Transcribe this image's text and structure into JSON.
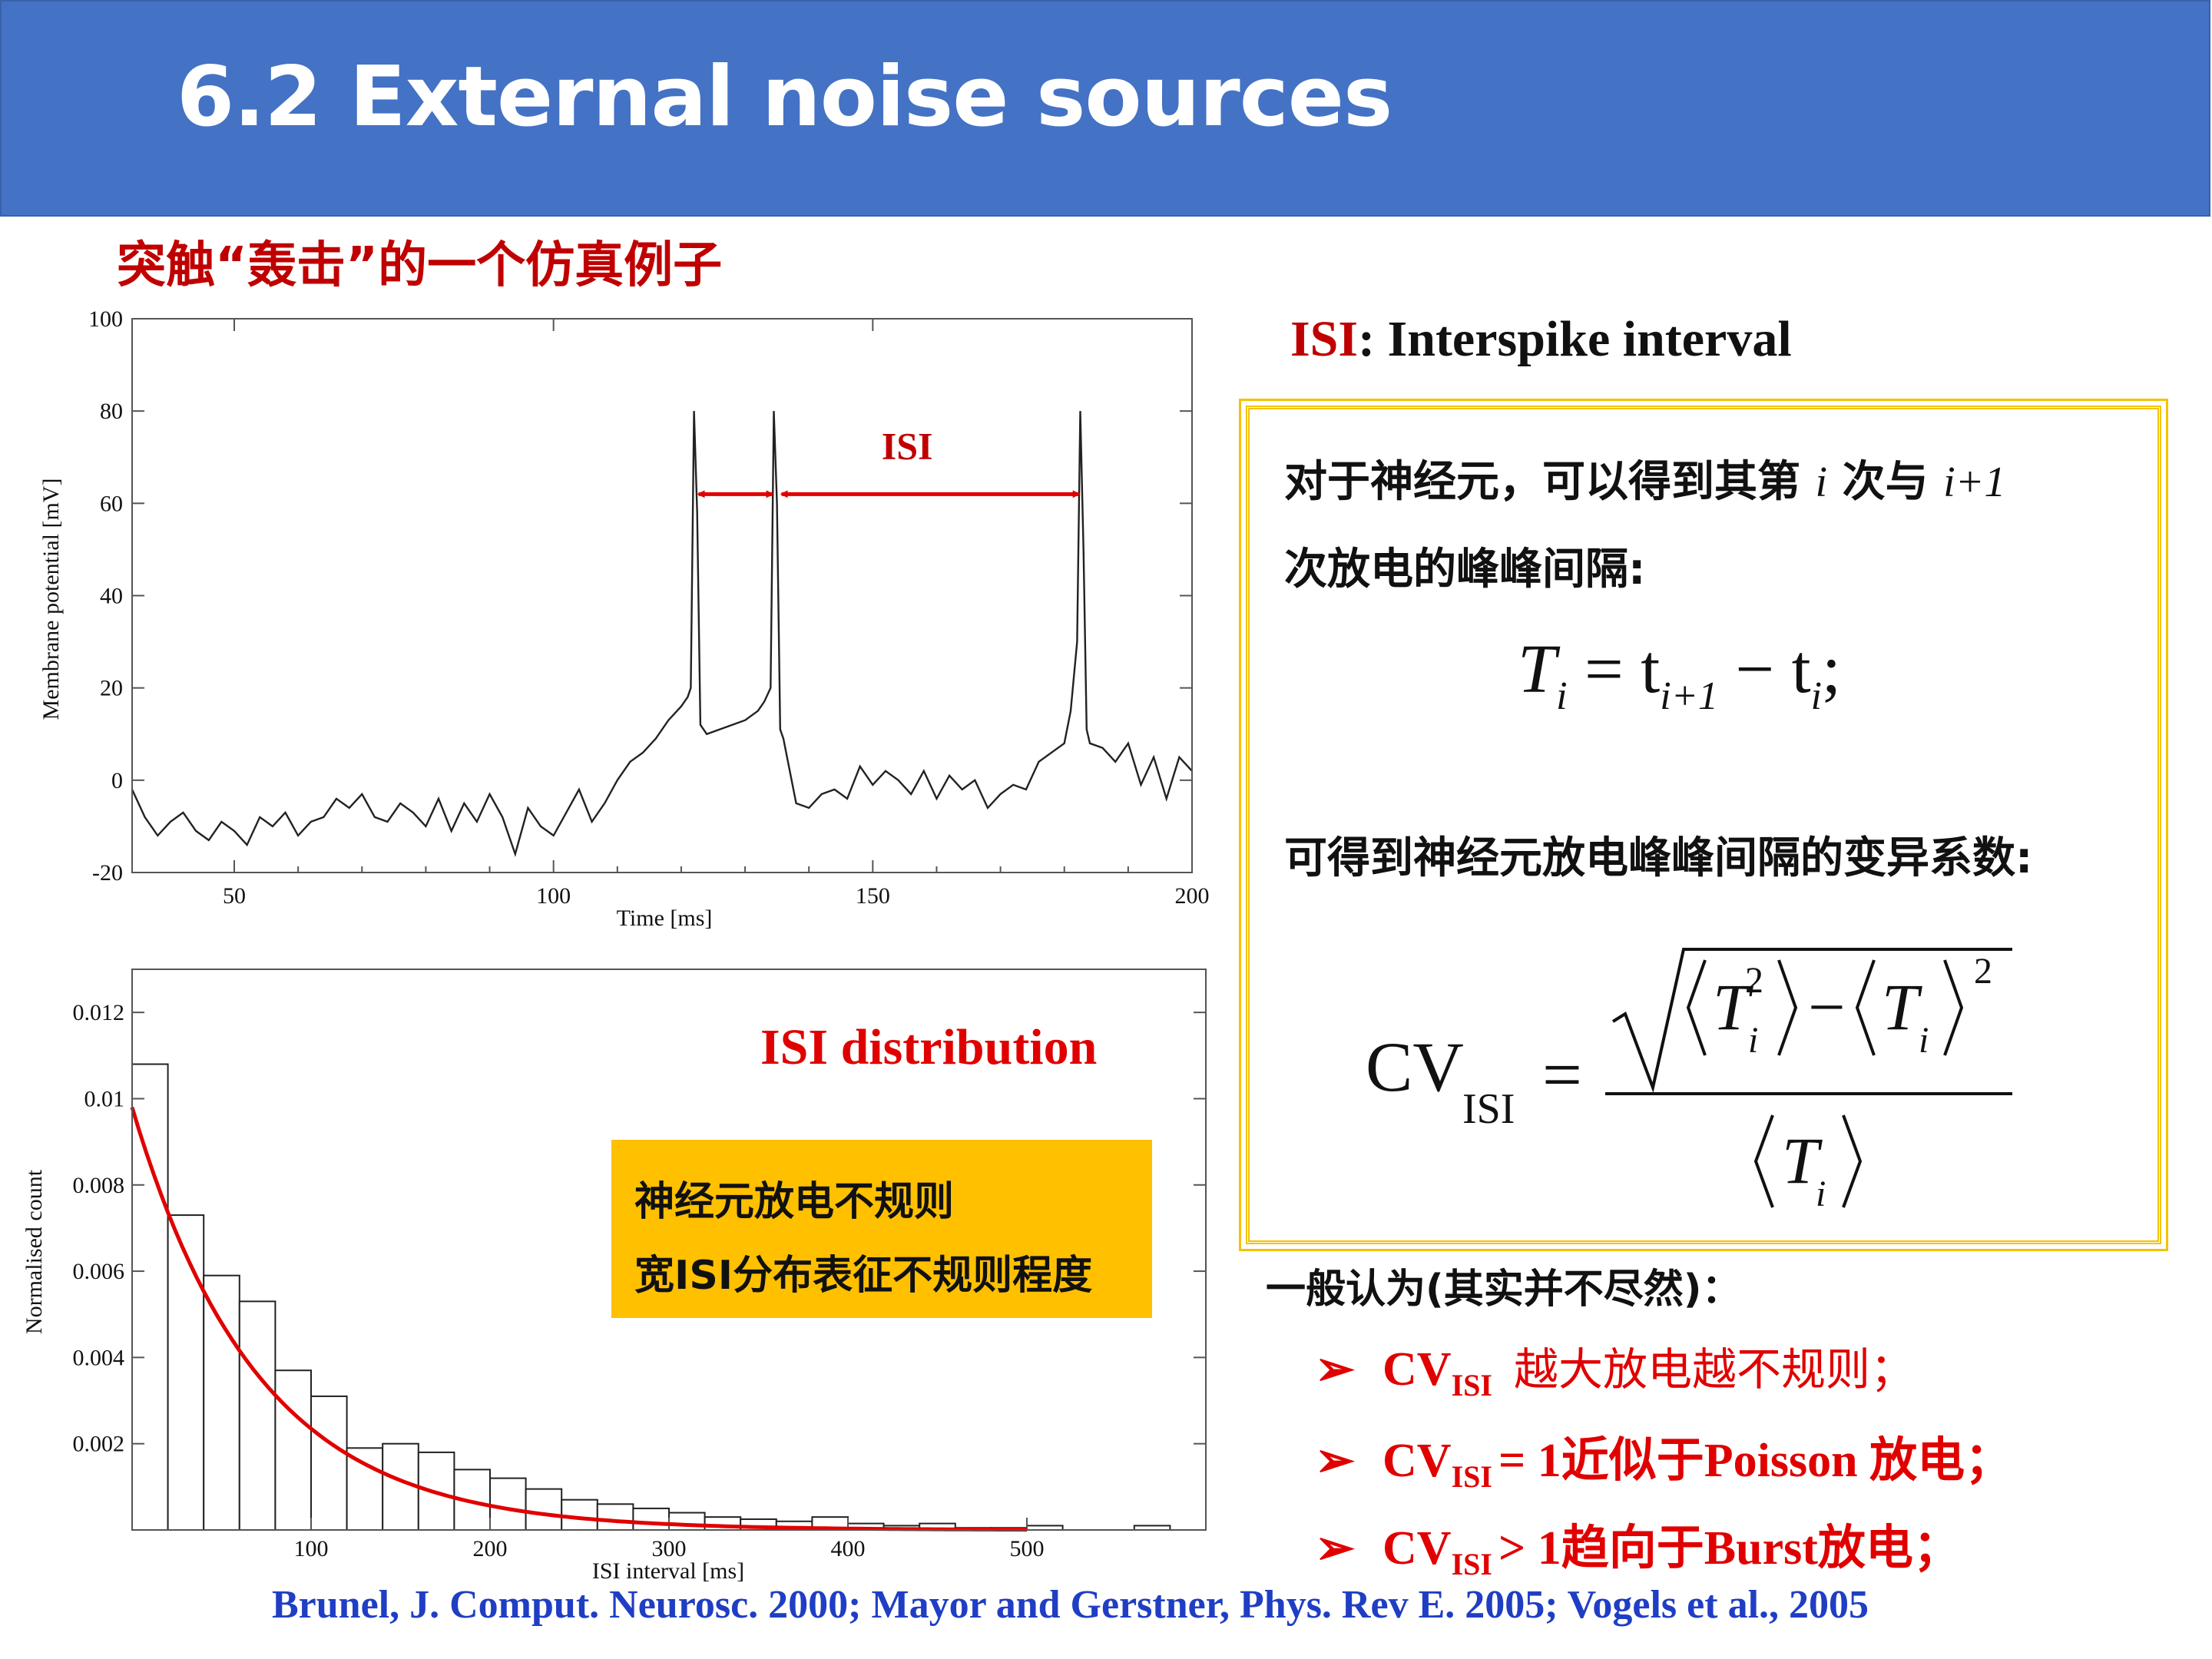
{
  "slide": {
    "title": "6.2 External noise sources",
    "subtitle": "突触“轰击”的一个仿真例子"
  },
  "isi_definition": {
    "abbr": "ISI",
    "rest": ": Interspike interval"
  },
  "box": {
    "line1_a": "对于神经元，可以得到其第",
    "line1_i": "i",
    "line1_b": "次与",
    "line1_c": "i+1",
    "line2": "次放电的峰峰间隔:",
    "formula1_T": "T",
    "formula1_i": "i",
    "formula1_eq": " = t",
    "formula1_i1": "i+1",
    "formula1_minus": " − t",
    "formula1_i2": "i",
    "formula1_end": ";",
    "line3": "可得到神经元放电峰峰间隔的变异系数:",
    "cv_label": "CV",
    "cv_sub": "ISI",
    "cv_eq": "=",
    "cv_T": "T",
    "cv_i": "i",
    "cv_sq": "2",
    "cv_minus": "−"
  },
  "general": "一般认为(其实并不尽然)：",
  "bullets": [
    {
      "arrow": "➢",
      "cv": "CV",
      "sub": "ISI",
      "text": "越大放电越不规则；"
    },
    {
      "arrow": "➢",
      "cv": "CV",
      "sub": "ISI",
      "text": "= 1近似于Poisson 放电；"
    },
    {
      "arrow": "➢",
      "cv": "CV",
      "sub": "ISI",
      "text": "> 1趋向于Burst放电；"
    }
  ],
  "note": {
    "line1": "神经元放电不规则",
    "line2": "宽ISI分布表征不规则程度"
  },
  "references": "Brunel, J. Comput. Neurosc. 2000;  Mayor and Gerstner, Phys. Rev E. 2005;  Vogels et al., 2005",
  "chart_data": [
    {
      "type": "line",
      "xlabel": "Time [ms]",
      "ylabel": "Membrane potential [mV]",
      "xlim": [
        34,
        200
      ],
      "ylim": [
        -20,
        100
      ],
      "xticks": [
        50,
        100,
        150,
        200
      ],
      "yticks": [
        -20,
        0,
        20,
        40,
        60,
        80,
        100
      ],
      "annotation": "ISI",
      "spike_times": [
        122,
        135,
        183
      ],
      "series": [
        {
          "x": [
            34,
            36,
            38,
            40,
            42,
            44,
            46,
            48,
            50,
            52,
            54,
            56,
            58,
            60,
            62,
            64,
            66,
            68,
            70,
            72,
            74,
            76,
            78,
            80,
            82,
            84,
            86,
            88,
            90,
            92,
            94,
            96,
            98,
            100,
            102,
            104,
            106,
            108,
            110,
            112,
            114,
            116,
            118,
            120,
            121,
            121.5,
            122,
            122.5,
            123,
            124,
            126,
            128,
            130,
            132,
            133,
            134,
            134.5,
            135,
            135.5,
            136,
            138,
            140,
            142,
            144,
            146,
            148,
            150,
            152,
            154,
            156,
            158,
            160,
            162,
            164,
            166,
            168,
            170,
            172,
            174,
            176,
            178,
            180,
            181,
            182,
            182.5,
            183,
            183.5,
            184,
            186,
            188,
            190,
            192,
            194,
            196,
            198,
            200
          ],
          "y": [
            -2,
            -8,
            -12,
            -9,
            -7,
            -11,
            -13,
            -9,
            -11,
            -14,
            -8,
            -10,
            -7,
            -12,
            -9,
            -8,
            -4,
            -6,
            -3,
            -8,
            -9,
            -5,
            -7,
            -10,
            -4,
            -11,
            -5,
            -9,
            -3,
            -8,
            -16,
            -6,
            -10,
            -12,
            -7,
            -2,
            -9,
            -5,
            0,
            4,
            6,
            9,
            13,
            16,
            18,
            20,
            80,
            58,
            12,
            10,
            11,
            12,
            13,
            15,
            17,
            20,
            80,
            60,
            11,
            9,
            -5,
            -6,
            -3,
            -2,
            -4,
            3,
            -1,
            2,
            0,
            -3,
            2,
            -4,
            1,
            -2,
            0,
            -6,
            -3,
            -1,
            -2,
            4,
            6,
            8,
            15,
            30,
            80,
            50,
            11,
            8,
            7,
            4,
            8,
            -1,
            5,
            -4,
            5,
            2
          ]
        }
      ]
    },
    {
      "type": "bar",
      "title": "ISI distribution",
      "xlabel": "ISI interval [ms]",
      "ylabel": "Normalised count",
      "xlim": [
        0,
        600
      ],
      "ylim": [
        0,
        0.013
      ],
      "xticks": [
        100,
        200,
        300,
        400,
        500
      ],
      "yticks": [
        0.002,
        0.004,
        0.006,
        0.008,
        0.01,
        0.012
      ],
      "bin_width": 20,
      "bin_starts": [
        0,
        20,
        40,
        60,
        80,
        100,
        120,
        140,
        160,
        180,
        200,
        220,
        240,
        260,
        280,
        300,
        320,
        340,
        360,
        380,
        400,
        420,
        440,
        460,
        480,
        500,
        520,
        540,
        560,
        580
      ],
      "values": [
        0.0108,
        0.0073,
        0.0059,
        0.0053,
        0.0037,
        0.0031,
        0.0019,
        0.002,
        0.0018,
        0.0014,
        0.0012,
        0.00095,
        0.0007,
        0.0006,
        0.0005,
        0.0004,
        0.0003,
        0.00025,
        0.0002,
        0.0003,
        0.00015,
        0.0001,
        0.00015,
        5e-05,
        5e-05,
        0.0001,
        0.0,
        0.0,
        0.0001,
        0.0
      ],
      "fit": {
        "type": "exponential",
        "amplitude": 0.0098,
        "decay_ms": 70
      }
    }
  ]
}
